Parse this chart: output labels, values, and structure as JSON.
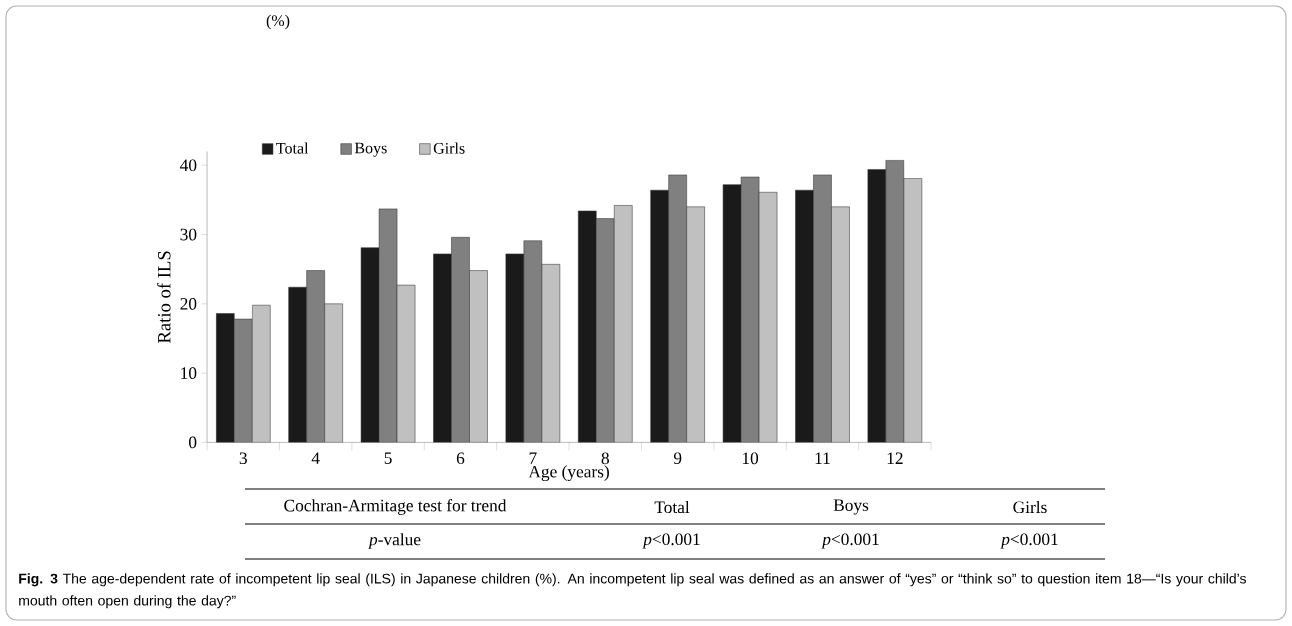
{
  "chart_data": {
    "type": "bar",
    "ylabel": "Ratio of ILS",
    "xlabel": "Age (years)",
    "categories": [
      "3",
      "4",
      "5",
      "6",
      "7",
      "8",
      "9",
      "10",
      "11",
      "12"
    ],
    "series": [
      {
        "name": "Total",
        "color": "#1a1a1a",
        "values": [
          18.6,
          22.4,
          28.1,
          27.2,
          27.2,
          33.4,
          36.4,
          37.2,
          36.4,
          39.4
        ]
      },
      {
        "name": "Boys",
        "color": "#808080",
        "values": [
          17.8,
          24.8,
          33.7,
          29.6,
          29.1,
          32.3,
          38.6,
          38.3,
          38.6,
          40.7
        ]
      },
      {
        "name": "Girls",
        "color": "#c0c0c0",
        "values": [
          19.8,
          20.0,
          22.7,
          24.8,
          25.7,
          34.2,
          34.0,
          36.1,
          34.0,
          38.1
        ]
      }
    ],
    "ylim": [
      0,
      42
    ],
    "yticks": [
      0,
      10,
      20,
      30,
      40
    ],
    "legend": "top left",
    "annotations": [
      "(%)",
      "Cochran-Armitage test for trend",
      "Total",
      "Boys",
      "Girls",
      "*p*-value",
      "*p*<0.001",
      "*p*<0.001",
      "*p*<0.001",
      "**Fig. 3** The age-dependent rate of incompetent lip seal (ILS) in Japanese children (%). An incompetent lip seal was defined as an answer of “yes” or “think so” to question item 18—“Is your child’s mouth often open during the day?”"
    ]
  }
}
